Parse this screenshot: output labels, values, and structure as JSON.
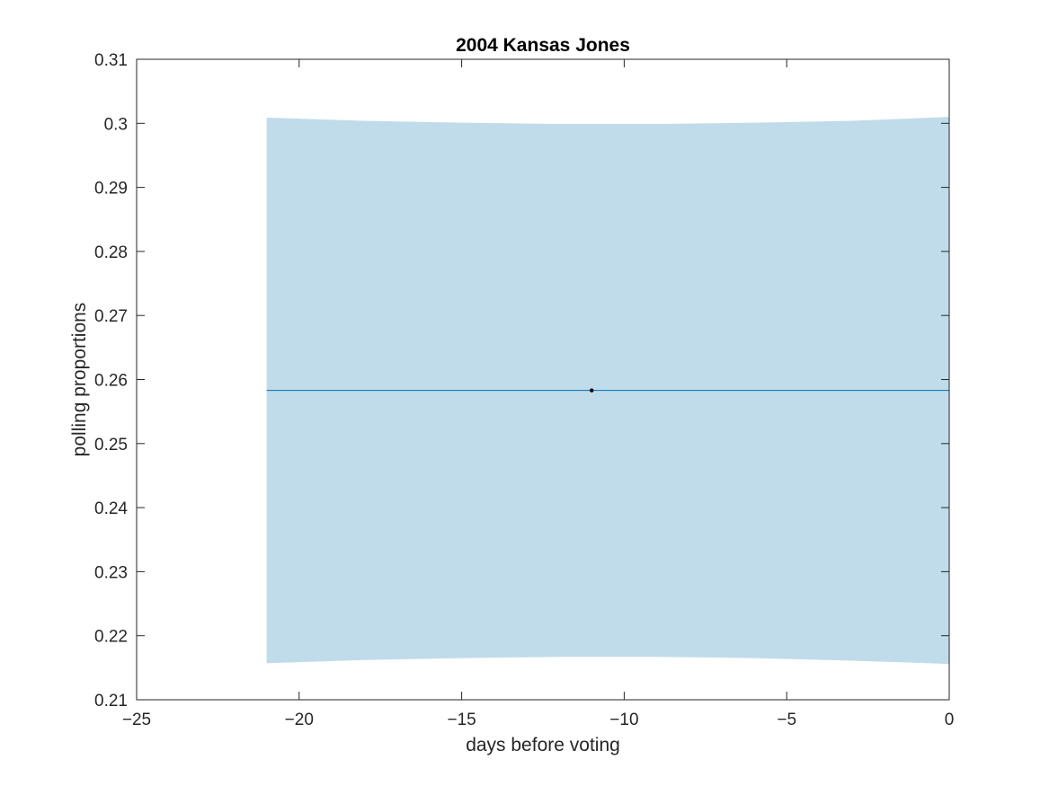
{
  "chart_data": {
    "type": "line",
    "title": "2004 Kansas Jones",
    "xlabel": "days before voting",
    "ylabel": "polling proportions",
    "xlim": [
      -25,
      0
    ],
    "ylim": [
      0.21,
      0.31
    ],
    "xticks": [
      -25,
      -20,
      -15,
      -10,
      -5,
      0
    ],
    "yticks": [
      0.21,
      0.22,
      0.23,
      0.24,
      0.25,
      0.26,
      0.27,
      0.28,
      0.29,
      0.3,
      0.31
    ],
    "grid": false,
    "series": [
      {
        "kind": "band",
        "x": [
          -21,
          -18,
          -15,
          -12,
          -9,
          -6,
          -3,
          0
        ],
        "upper": [
          0.3009,
          0.3004,
          0.3001,
          0.2999,
          0.2999,
          0.3001,
          0.3004,
          0.301
        ],
        "lower": [
          0.2157,
          0.2162,
          0.2165,
          0.2167,
          0.2167,
          0.2165,
          0.2161,
          0.2156
        ]
      },
      {
        "kind": "line",
        "x": [
          -21,
          0
        ],
        "y": [
          0.2583,
          0.2583
        ]
      },
      {
        "kind": "point",
        "x": [
          -11
        ],
        "y": [
          0.2583
        ]
      }
    ],
    "colors": {
      "band": "#c0dcea",
      "line": "#0072bd",
      "point": "#000000",
      "axis": "#262626"
    }
  }
}
